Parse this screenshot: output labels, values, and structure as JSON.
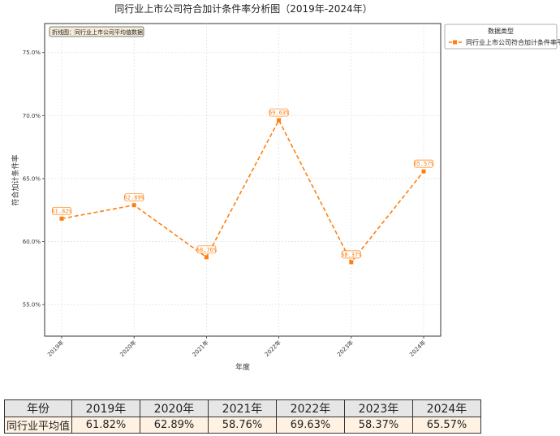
{
  "chart_data": {
    "type": "line",
    "title": "同行业上市公司符合加计条件率分析图（2019年-2024年）",
    "xlabel": "年度",
    "ylabel": "符合加计条件率",
    "categories": [
      "2019年",
      "2020年",
      "2021年",
      "2022年",
      "2023年",
      "2024年"
    ],
    "series": [
      {
        "name": "同行业上市公司符合加计条件率平均值",
        "values": [
          61.82,
          62.89,
          58.76,
          69.63,
          58.37,
          65.57
        ],
        "labels": [
          "61.82%",
          "62.89%",
          "58.76%",
          "69.63%",
          "58.37%",
          "65.57%"
        ],
        "color": "#ff7f0e"
      }
    ],
    "ylim": [
      52.5,
      77.3
    ],
    "yticks": [
      55.0,
      60.0,
      65.0,
      70.0,
      75.0
    ],
    "ytick_labels": [
      "55.0%",
      "60.0%",
      "65.0%",
      "70.0%",
      "75.0%"
    ],
    "grid": true,
    "annotation": "折线图：同行业上市公司平均值数据",
    "legend": {
      "title": "数据类型",
      "placement": "outside-right"
    }
  },
  "table": {
    "header": [
      "年份",
      "2019年",
      "2020年",
      "2021年",
      "2022年",
      "2023年",
      "2024年"
    ],
    "row_label": "同行业平均值",
    "row_values": [
      "61.82%",
      "62.89%",
      "58.76%",
      "69.63%",
      "58.37%",
      "65.57%"
    ]
  }
}
